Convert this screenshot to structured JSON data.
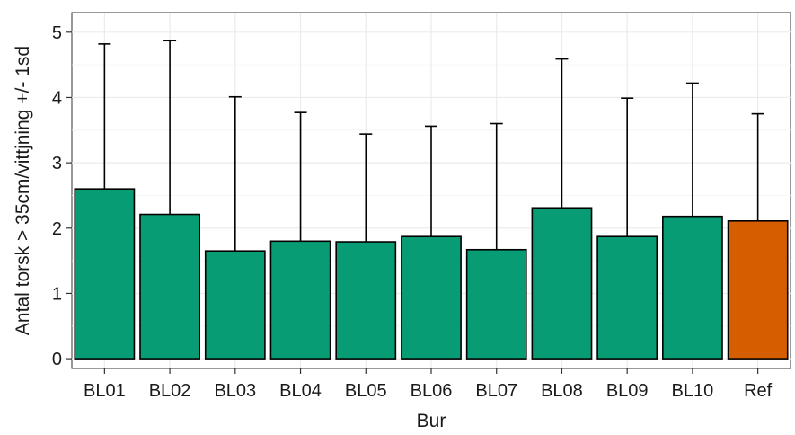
{
  "chart_data": {
    "type": "bar",
    "title": "",
    "xlabel": "Bur",
    "ylabel": "Antal torsk > 35cm/vittjning +/- 1sd",
    "ylim": [
      -0.15,
      5.3
    ],
    "yticks": [
      0,
      1,
      2,
      3,
      4,
      5
    ],
    "grid": true,
    "legend": "none",
    "categories": [
      "BL01",
      "BL02",
      "BL03",
      "BL04",
      "BL05",
      "BL06",
      "BL07",
      "BL08",
      "BL09",
      "BL10",
      "Ref"
    ],
    "values": [
      2.6,
      2.21,
      1.65,
      1.8,
      1.79,
      1.87,
      1.67,
      2.31,
      1.87,
      2.18,
      2.11
    ],
    "error_upper": [
      4.82,
      4.87,
      4.01,
      3.77,
      3.44,
      3.56,
      3.6,
      4.59,
      3.99,
      4.22,
      3.75
    ],
    "colors": [
      "#089c75",
      "#089c75",
      "#089c75",
      "#089c75",
      "#089c75",
      "#089c75",
      "#089c75",
      "#089c75",
      "#089c75",
      "#089c75",
      "#d55e00"
    ]
  }
}
